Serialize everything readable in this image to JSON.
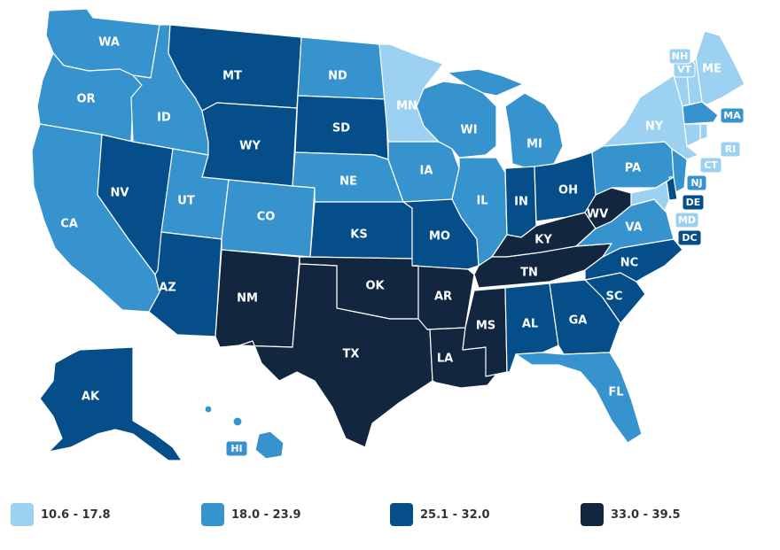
{
  "colors": {
    "c1": "#9dd1f1",
    "c2": "#3793cd",
    "c3": "#054e8a",
    "c4": "#12263f",
    "water": "#ffffff"
  },
  "legend": [
    {
      "label": "10.6 - 17.8",
      "color": "#9dd1f1"
    },
    {
      "label": "18.0 - 23.9",
      "color": "#3793cd"
    },
    {
      "label": "25.1 - 32.0",
      "color": "#054e8a"
    },
    {
      "label": "33.0 - 39.5",
      "color": "#12263f"
    }
  ],
  "states": [
    {
      "abbr": "WA",
      "bin": 2
    },
    {
      "abbr": "OR",
      "bin": 2
    },
    {
      "abbr": "CA",
      "bin": 2
    },
    {
      "abbr": "ID",
      "bin": 2
    },
    {
      "abbr": "NV",
      "bin": 3
    },
    {
      "abbr": "MT",
      "bin": 3
    },
    {
      "abbr": "WY",
      "bin": 3
    },
    {
      "abbr": "UT",
      "bin": 2
    },
    {
      "abbr": "AZ",
      "bin": 3
    },
    {
      "abbr": "CO",
      "bin": 2
    },
    {
      "abbr": "NM",
      "bin": 4
    },
    {
      "abbr": "ND",
      "bin": 2
    },
    {
      "abbr": "SD",
      "bin": 3
    },
    {
      "abbr": "NE",
      "bin": 2
    },
    {
      "abbr": "KS",
      "bin": 3
    },
    {
      "abbr": "OK",
      "bin": 4
    },
    {
      "abbr": "TX",
      "bin": 4
    },
    {
      "abbr": "MN",
      "bin": 1
    },
    {
      "abbr": "IA",
      "bin": 2
    },
    {
      "abbr": "MO",
      "bin": 3
    },
    {
      "abbr": "AR",
      "bin": 4
    },
    {
      "abbr": "LA",
      "bin": 4
    },
    {
      "abbr": "WI",
      "bin": 2
    },
    {
      "abbr": "IL",
      "bin": 2
    },
    {
      "abbr": "MI",
      "bin": 2
    },
    {
      "abbr": "IN",
      "bin": 3
    },
    {
      "abbr": "OH",
      "bin": 3
    },
    {
      "abbr": "KY",
      "bin": 4
    },
    {
      "abbr": "TN",
      "bin": 4
    },
    {
      "abbr": "MS",
      "bin": 4
    },
    {
      "abbr": "AL",
      "bin": 3
    },
    {
      "abbr": "GA",
      "bin": 3
    },
    {
      "abbr": "FL",
      "bin": 2
    },
    {
      "abbr": "SC",
      "bin": 3
    },
    {
      "abbr": "NC",
      "bin": 3
    },
    {
      "abbr": "VA",
      "bin": 2
    },
    {
      "abbr": "WV",
      "bin": 4
    },
    {
      "abbr": "PA",
      "bin": 2
    },
    {
      "abbr": "NY",
      "bin": 1
    },
    {
      "abbr": "VT",
      "bin": 1
    },
    {
      "abbr": "NH",
      "bin": 1
    },
    {
      "abbr": "ME",
      "bin": 1
    },
    {
      "abbr": "MA",
      "bin": 2
    },
    {
      "abbr": "RI",
      "bin": 1
    },
    {
      "abbr": "CT",
      "bin": 1
    },
    {
      "abbr": "NJ",
      "bin": 2
    },
    {
      "abbr": "DE",
      "bin": 3
    },
    {
      "abbr": "MD",
      "bin": 1
    },
    {
      "abbr": "DC",
      "bin": 3
    },
    {
      "abbr": "AK",
      "bin": 3
    },
    {
      "abbr": "HI",
      "bin": 2
    }
  ]
}
